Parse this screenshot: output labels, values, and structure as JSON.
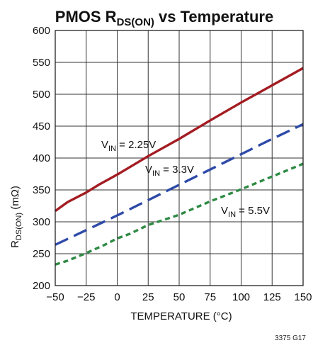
{
  "chart_data": {
    "type": "line",
    "title": "PMOS R",
    "title_sub": "DS(ON)",
    "title_tail": " vs Temperature",
    "xlabel": "TEMPERATURE (°C)",
    "ylabel": "R",
    "ylabel_sub": "DS(ON)",
    "ylabel_tail": " (mΩ)",
    "xlim": [
      -50,
      150
    ],
    "ylim": [
      200,
      600
    ],
    "xticks": [
      "−50",
      "−25",
      "0",
      "25",
      "50",
      "75",
      "100",
      "125",
      "150"
    ],
    "yticks": [
      "200",
      "250",
      "300",
      "350",
      "400",
      "450",
      "500",
      "550",
      "600"
    ],
    "grid": true,
    "series": [
      {
        "name": "VIN = 2.25V",
        "label_main": "V",
        "label_sub": "IN",
        "label_tail": " = 2.25V",
        "color": "#a31c22",
        "dash": "solid",
        "x": [
          -50,
          -40,
          -30,
          -25,
          -15,
          0,
          25,
          50,
          75,
          100,
          125,
          150
        ],
        "y": [
          317,
          331,
          341,
          346,
          358,
          374,
          403,
          430,
          459,
          487,
          514,
          541
        ]
      },
      {
        "name": "VIN = 3.3V",
        "label_main": "V",
        "label_sub": "IN",
        "label_tail": " = 3.3V",
        "color": "#2e4aa8",
        "dash": "long",
        "x": [
          -50,
          -25,
          0,
          25,
          50,
          75,
          100,
          125,
          150
        ],
        "y": [
          264,
          287,
          310,
          334,
          358,
          382,
          406,
          430,
          453
        ]
      },
      {
        "name": "VIN = 5.5V",
        "label_main": "V",
        "label_sub": "IN",
        "label_tail": " = 5.5V",
        "color": "#2e8a44",
        "dash": "short",
        "x": [
          -50,
          -40,
          -25,
          -10,
          0,
          10,
          25,
          50,
          75,
          100,
          125,
          150
        ],
        "y": [
          233,
          239,
          251,
          264,
          274,
          281,
          295,
          311,
          332,
          351,
          371,
          391
        ]
      }
    ],
    "figure_id": "3375 G17"
  }
}
